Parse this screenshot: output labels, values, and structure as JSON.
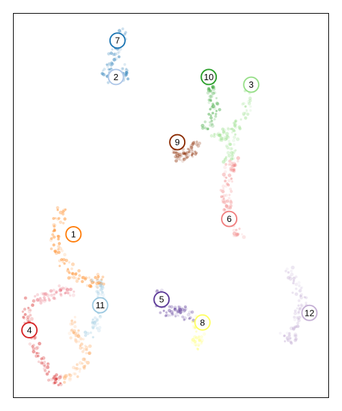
{
  "chart_data": {
    "type": "scatter",
    "title": "",
    "xlabel": "",
    "ylabel": "",
    "xlim": [
      0,
      100
    ],
    "ylim": [
      0,
      100
    ],
    "grid": false,
    "legend": "none",
    "clusters": [
      {
        "label": "1",
        "x": 19.0,
        "y": 42.5,
        "color": "#ff7f0e"
      },
      {
        "label": "2",
        "x": 32.5,
        "y": 83.5,
        "color": "#aec7e8"
      },
      {
        "label": "3",
        "x": 75.5,
        "y": 81.5,
        "color": "#98df8a"
      },
      {
        "label": "4",
        "x": 5.0,
        "y": 17.5,
        "color": "#d62728"
      },
      {
        "label": "5",
        "x": 47.0,
        "y": 25.5,
        "color": "#5e3c99"
      },
      {
        "label": "6",
        "x": 68.5,
        "y": 46.5,
        "color": "#f08080"
      },
      {
        "label": "7",
        "x": 33.0,
        "y": 93.0,
        "color": "#1f77b4"
      },
      {
        "label": "8",
        "x": 60.0,
        "y": 19.5,
        "color": "#ffff66"
      },
      {
        "label": "9",
        "x": 52.0,
        "y": 66.5,
        "color": "#8c2d04"
      },
      {
        "label": "10",
        "x": 62.0,
        "y": 83.5,
        "color": "#2ca02c"
      },
      {
        "label": "11",
        "x": 27.5,
        "y": 24.0,
        "color": "#9ecae1"
      },
      {
        "label": "12",
        "x": 94.0,
        "y": 22.0,
        "color": "#c5b0d5"
      }
    ],
    "trajectories": [
      {
        "cluster": "7",
        "points": [
          [
            35,
            96
          ],
          [
            33,
            91
          ],
          [
            31,
            88
          ],
          [
            29,
            85
          ],
          [
            31,
            83
          ],
          [
            33,
            83
          ],
          [
            35,
            84
          ],
          [
            36,
            86
          ]
        ]
      },
      {
        "cluster": "10",
        "points": [
          [
            62,
            82
          ],
          [
            63,
            79
          ],
          [
            64,
            76
          ],
          [
            63,
            73
          ],
          [
            61,
            70
          ]
        ]
      },
      {
        "cluster": "3",
        "points": [
          [
            75,
            80
          ],
          [
            74,
            76
          ],
          [
            72,
            72
          ],
          [
            70,
            70
          ],
          [
            67,
            69
          ],
          [
            64,
            68
          ],
          [
            70,
            67
          ],
          [
            69,
            64
          ],
          [
            68,
            61
          ]
        ]
      },
      {
        "cluster": "9",
        "points": [
          [
            52,
            65
          ],
          [
            53,
            63
          ],
          [
            54,
            62
          ],
          [
            56,
            63
          ],
          [
            57,
            64
          ],
          [
            58,
            66
          ]
        ]
      },
      {
        "cluster": "6",
        "points": [
          [
            71,
            62
          ],
          [
            69,
            60
          ],
          [
            68,
            58
          ],
          [
            68,
            55
          ],
          [
            67,
            52
          ],
          [
            68,
            50
          ],
          [
            69,
            47
          ],
          [
            70,
            44
          ],
          [
            72,
            42
          ]
        ]
      },
      {
        "cluster": "1",
        "points": [
          [
            16,
            50
          ],
          [
            14,
            46
          ],
          [
            13,
            42
          ],
          [
            14,
            38
          ],
          [
            16,
            35
          ],
          [
            19,
            32
          ],
          [
            22,
            30
          ],
          [
            26,
            30
          ],
          [
            28,
            31
          ]
        ]
      },
      {
        "cluster": "11",
        "points": [
          [
            26,
            31
          ],
          [
            27,
            28
          ],
          [
            28,
            25
          ],
          [
            27,
            22
          ],
          [
            26,
            19
          ],
          [
            24,
            16
          ]
        ]
      },
      {
        "cluster": "4",
        "points": [
          [
            5,
            25
          ],
          [
            4,
            21
          ],
          [
            5,
            18
          ],
          [
            6,
            15
          ],
          [
            8,
            11
          ],
          [
            10,
            8
          ],
          [
            13,
            5
          ],
          [
            16,
            4
          ]
        ]
      },
      {
        "cluster": "4b",
        "points": [
          [
            7,
            25
          ],
          [
            10,
            26
          ],
          [
            13,
            27
          ],
          [
            16,
            28
          ],
          [
            19,
            27
          ]
        ]
      },
      {
        "cluster": "1b",
        "points": [
          [
            16,
            4
          ],
          [
            19,
            6
          ],
          [
            22,
            9
          ],
          [
            23,
            12
          ],
          [
            21,
            14
          ],
          [
            19,
            17
          ],
          [
            20,
            20
          ]
        ]
      },
      {
        "cluster": "5",
        "points": [
          [
            46,
            28
          ],
          [
            46,
            25
          ],
          [
            48,
            23
          ],
          [
            50,
            22
          ],
          [
            52,
            23
          ],
          [
            54,
            22
          ],
          [
            56,
            21
          ]
        ]
      },
      {
        "cluster": "8",
        "points": [
          [
            58,
            21
          ],
          [
            59,
            18
          ],
          [
            59,
            15
          ],
          [
            58,
            13
          ]
        ]
      },
      {
        "cluster": "12",
        "points": [
          [
            88,
            33
          ],
          [
            89,
            30
          ],
          [
            91,
            27
          ],
          [
            92,
            24
          ],
          [
            90,
            21
          ],
          [
            89,
            18
          ],
          [
            88,
            15
          ],
          [
            86,
            16
          ]
        ]
      }
    ]
  }
}
